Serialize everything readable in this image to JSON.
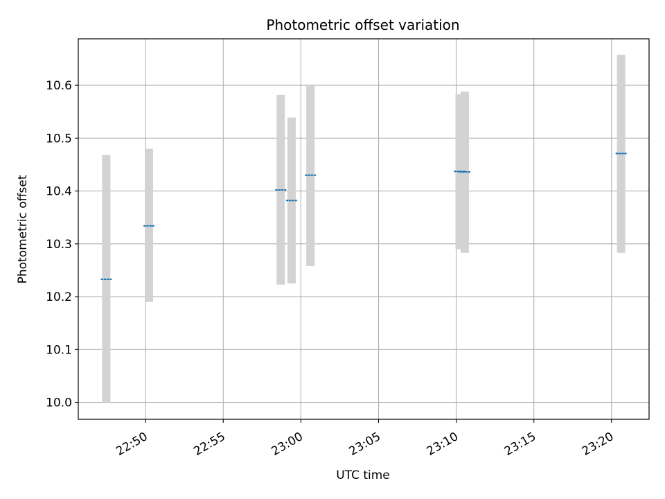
{
  "chart_data": {
    "type": "scatter",
    "title": "Photometric offset variation",
    "xlabel": "UTC time",
    "ylabel": "Photometric offset",
    "x_ticks": [
      "22:50",
      "22:55",
      "23:00",
      "23:05",
      "23:10",
      "23:15",
      "23:20"
    ],
    "xlim": [
      "22:45:40",
      "23:22:25"
    ],
    "y_ticks": [
      "10.0",
      "10.1",
      "10.2",
      "10.3",
      "10.4",
      "10.5",
      "10.6"
    ],
    "ylim": [
      9.968,
      10.688
    ],
    "grid": true,
    "colors": {
      "points": "#1f77b4",
      "error_bars": "#d3d3d3",
      "grid": "#b0b0b0",
      "axes": "#000000"
    },
    "series": [
      {
        "points": [
          {
            "x": "22:47:28",
            "y": 10.233,
            "ymin": 10.0,
            "ymax": 10.468
          },
          {
            "x": "22:50:13",
            "y": 10.334,
            "ymin": 10.19,
            "ymax": 10.48
          },
          {
            "x": "22:58:42",
            "y": 10.402,
            "ymin": 10.223,
            "ymax": 10.582
          },
          {
            "x": "22:59:24",
            "y": 10.382,
            "ymin": 10.225,
            "ymax": 10.539
          },
          {
            "x": "23:00:37",
            "y": 10.43,
            "ymin": 10.258,
            "ymax": 10.6
          },
          {
            "x": "23:10:13",
            "y": 10.437,
            "ymin": 10.29,
            "ymax": 10.583
          },
          {
            "x": "23:10:33",
            "y": 10.436,
            "ymin": 10.283,
            "ymax": 10.588
          },
          {
            "x": "23:20:37",
            "y": 10.471,
            "ymin": 10.283,
            "ymax": 10.658
          }
        ]
      }
    ]
  }
}
